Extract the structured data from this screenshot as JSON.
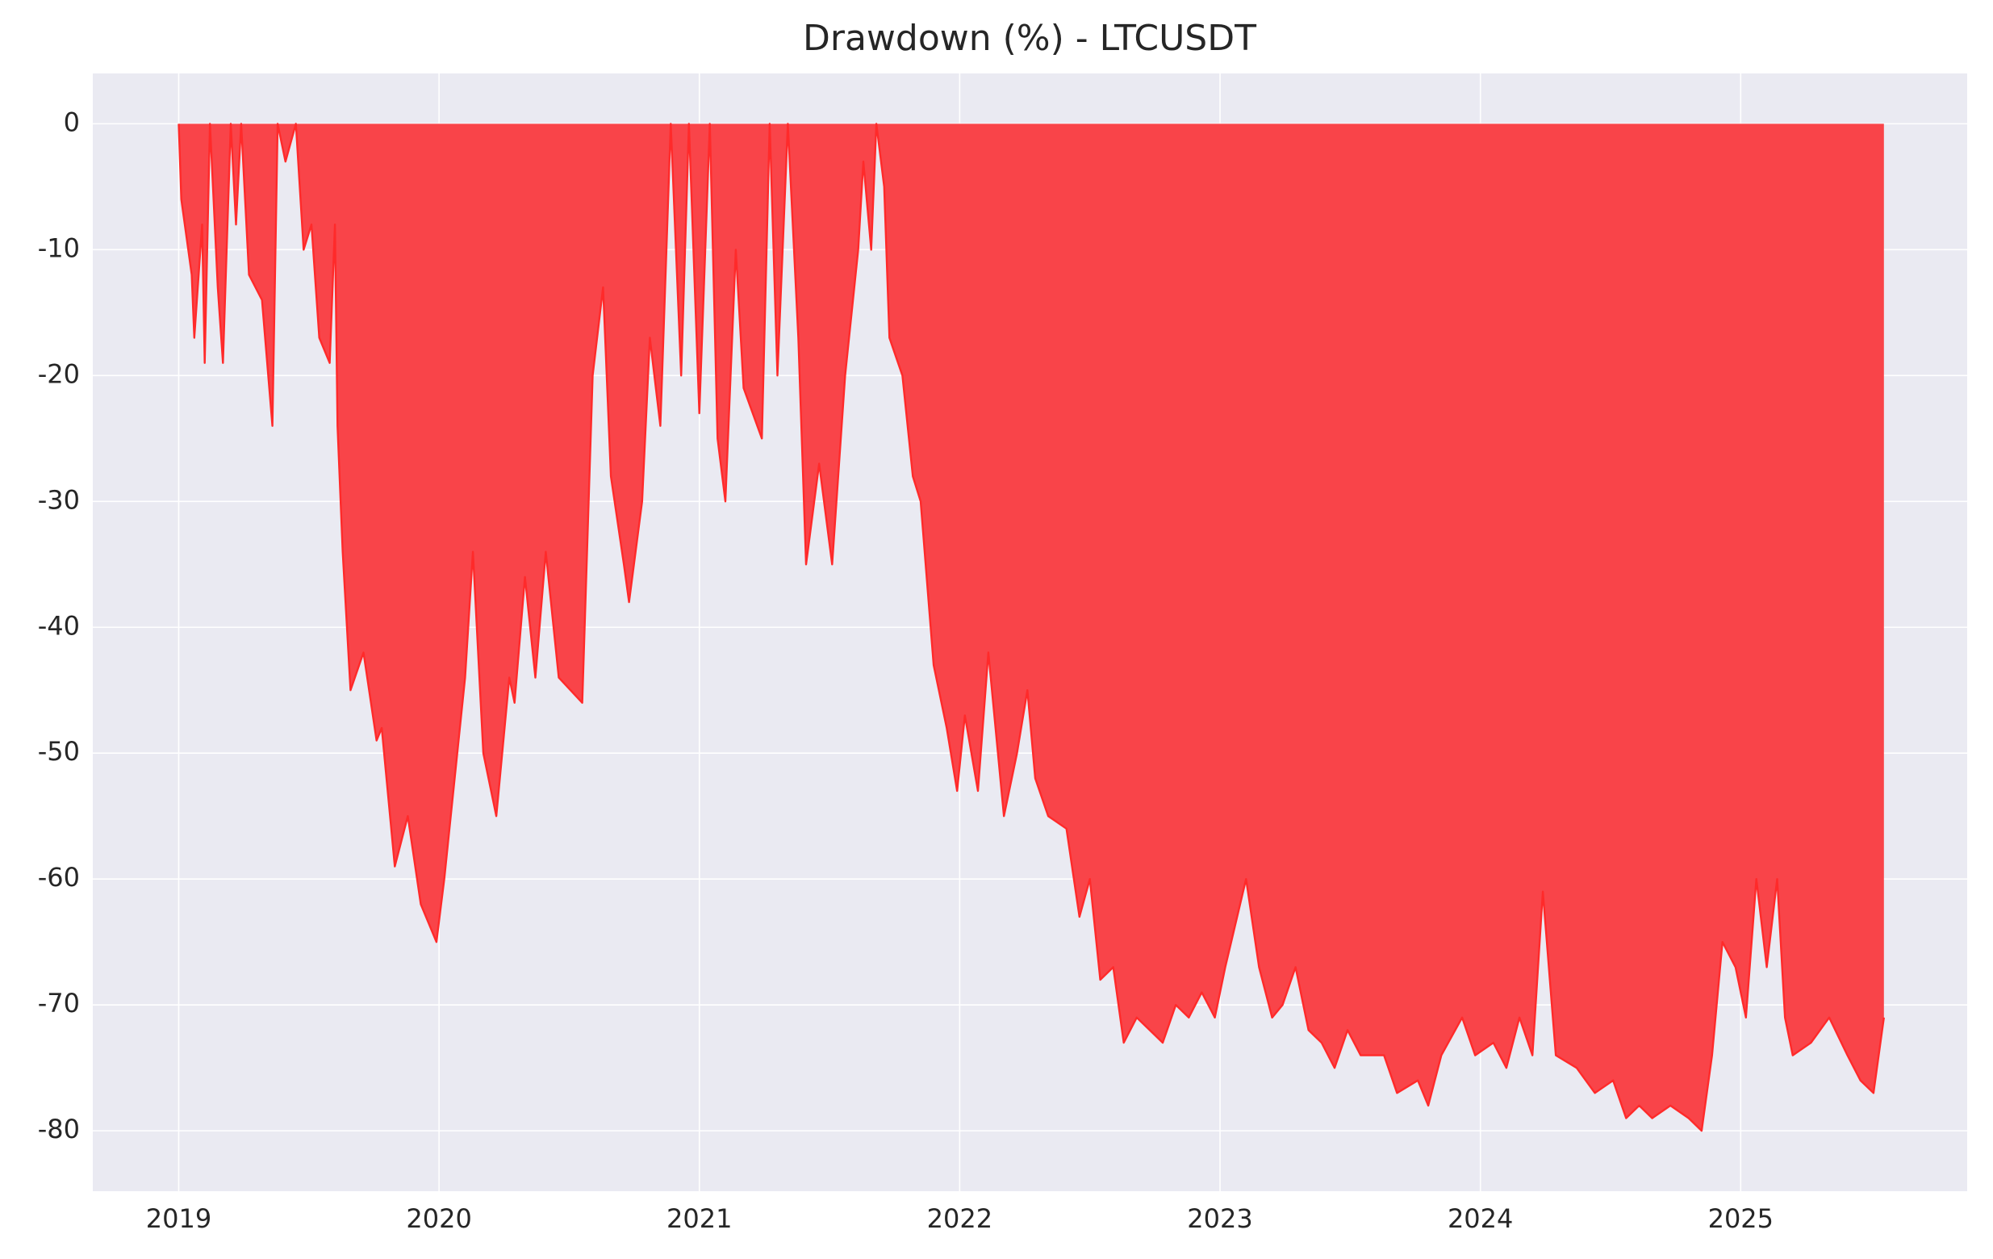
{
  "chart_data": {
    "type": "area",
    "title": "Drawdown (%) - LTCUSDT",
    "x": [
      2019.0,
      2019.01,
      2019.05,
      2019.06,
      2019.09,
      2019.1,
      2019.12,
      2019.15,
      2019.17,
      2019.2,
      2019.22,
      2019.24,
      2019.27,
      2019.32,
      2019.36,
      2019.38,
      2019.41,
      2019.45,
      2019.48,
      2019.51,
      2019.54,
      2019.58,
      2019.6,
      2019.61,
      2019.63,
      2019.66,
      2019.71,
      2019.76,
      2019.78,
      2019.83,
      2019.88,
      2019.93,
      2019.99,
      2020.02,
      2020.07,
      2020.1,
      2020.13,
      2020.17,
      2020.22,
      2020.27,
      2020.29,
      2020.33,
      2020.37,
      2020.41,
      2020.46,
      2020.55,
      2020.59,
      2020.63,
      2020.66,
      2020.71,
      2020.73,
      2020.78,
      2020.81,
      2020.85,
      2020.89,
      2020.93,
      2020.96,
      2021.0,
      2021.04,
      2021.07,
      2021.1,
      2021.14,
      2021.17,
      2021.24,
      2021.27,
      2021.3,
      2021.34,
      2021.38,
      2021.41,
      2021.46,
      2021.51,
      2021.56,
      2021.61,
      2021.63,
      2021.66,
      2021.68,
      2021.71,
      2021.73,
      2021.78,
      2021.82,
      2021.85,
      2021.9,
      2021.95,
      2021.99,
      2022.02,
      2022.07,
      2022.11,
      2022.17,
      2022.22,
      2022.26,
      2022.29,
      2022.34,
      2022.41,
      2022.46,
      2022.5,
      2022.54,
      2022.59,
      2022.63,
      2022.68,
      2022.73,
      2022.78,
      2022.83,
      2022.88,
      2022.93,
      2022.98,
      2023.02,
      2023.1,
      2023.15,
      2023.2,
      2023.24,
      2023.29,
      2023.34,
      2023.39,
      2023.44,
      2023.49,
      2023.54,
      2023.63,
      2023.68,
      2023.76,
      2023.8,
      2023.85,
      2023.93,
      2023.98,
      2024.05,
      2024.1,
      2024.15,
      2024.2,
      2024.24,
      2024.29,
      2024.37,
      2024.44,
      2024.51,
      2024.56,
      2024.61,
      2024.66,
      2024.73,
      2024.8,
      2024.85,
      2024.89,
      2024.93,
      2024.98,
      2025.02,
      2025.06,
      2025.1,
      2025.14,
      2025.17,
      2025.2,
      2025.27,
      2025.34,
      2025.41,
      2025.46,
      2025.51,
      2025.55
    ],
    "series": [
      {
        "name": "Drawdown",
        "color": "#ff2a2a",
        "fill": "#f94449",
        "values": [
          0,
          -6,
          -12,
          -17,
          -8,
          -19,
          0,
          -13,
          -19,
          0,
          -8,
          0,
          -12,
          -14,
          -24,
          0,
          -3,
          0,
          -10,
          -8,
          -17,
          -19,
          -8,
          -24,
          -34,
          -45,
          -42,
          -49,
          -48,
          -59,
          -55,
          -62,
          -65,
          -60,
          -50,
          -44,
          -34,
          -50,
          -55,
          -44,
          -46,
          -36,
          -44,
          -34,
          -44,
          -46,
          -20,
          -13,
          -28,
          -35,
          -38,
          -30,
          -17,
          -24,
          0,
          -20,
          0,
          -23,
          0,
          -25,
          -30,
          -10,
          -21,
          -25,
          0,
          -20,
          0,
          -17,
          -35,
          -27,
          -35,
          -20,
          -10,
          -3,
          -10,
          0,
          -5,
          -17,
          -20,
          -28,
          -30,
          -43,
          -48,
          -53,
          -47,
          -53,
          -42,
          -55,
          -50,
          -45,
          -52,
          -55,
          -56,
          -63,
          -60,
          -68,
          -67,
          -73,
          -71,
          -72,
          -73,
          -70,
          -71,
          -69,
          -71,
          -67,
          -60,
          -67,
          -71,
          -70,
          -67,
          -72,
          -73,
          -75,
          -72,
          -74,
          -74,
          -77,
          -76,
          -78,
          -74,
          -71,
          -74,
          -73,
          -75,
          -71,
          -74,
          -61,
          -74,
          -75,
          -77,
          -76,
          -79,
          -78,
          -79,
          -78,
          -79,
          -80,
          -74,
          -65,
          -67,
          -71,
          -60,
          -67,
          -60,
          -71,
          -74,
          -73,
          -71,
          -74,
          -76,
          -77,
          -71
        ]
      }
    ],
    "xlim": [
      2018.67,
      2025.87
    ],
    "xticks": [
      2019,
      2020,
      2021,
      2022,
      2023,
      2024,
      2025
    ],
    "ylim": [
      -84.8,
      4
    ],
    "yticks": [
      0,
      -10,
      -20,
      -30,
      -40,
      -50,
      -60,
      -70,
      -80
    ],
    "grid": true
  }
}
